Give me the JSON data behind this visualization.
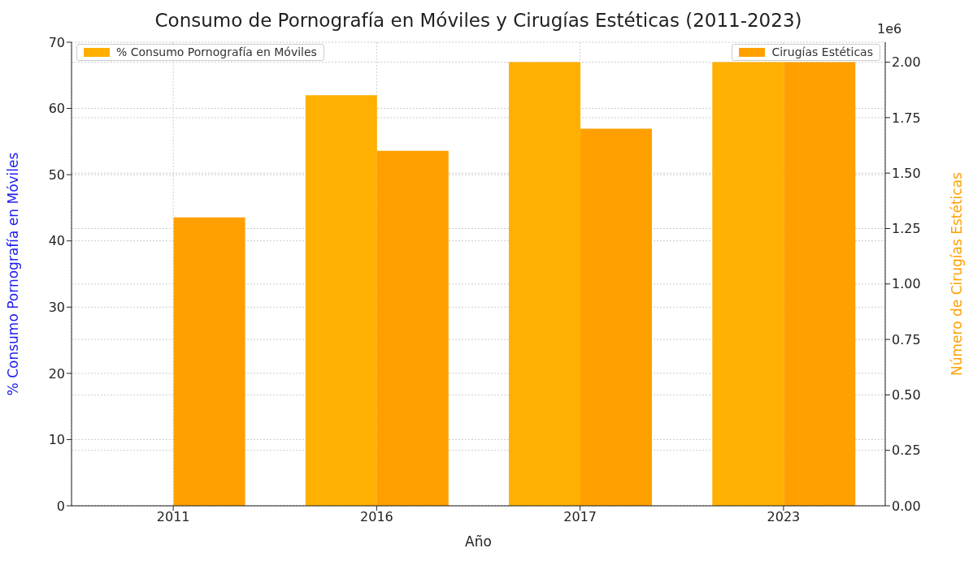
{
  "chart_data": {
    "type": "bar",
    "title": "Consumo de Pornografía en Móviles y Cirugías Estéticas (2011-2023)",
    "xlabel": "Año",
    "ylabel": "% Consumo Pornografía en Móviles",
    "y2label": "Número de Cirugías Estéticas",
    "categories": [
      "2011",
      "2016",
      "2017",
      "2023"
    ],
    "series": [
      {
        "name": "% Consumo Pornografía en Móviles",
        "color": "#ffb000",
        "values": [
          null,
          62,
          67,
          67
        ]
      },
      {
        "name": "Cirugías Estéticas",
        "color": "#ffa000",
        "axis": "y2",
        "values": [
          1.3,
          1.6,
          1.7,
          2.0
        ]
      }
    ],
    "ylim": [
      0,
      70
    ],
    "yticks": [
      0,
      10,
      20,
      30,
      40,
      50,
      60,
      70
    ],
    "y2lim": [
      0,
      2.09
    ],
    "y2ticks": [
      {
        "value": 0,
        "label": "0.00"
      },
      0.25,
      {
        "value": 0.5,
        "label": "0.50"
      },
      0.75,
      {
        "value": 1,
        "label": "1.00"
      },
      1.25,
      {
        "value": 1.5,
        "label": "1.50"
      },
      1.75,
      {
        "value": 2,
        "label": "2.00"
      }
    ],
    "annotations": [
      "1e6"
    ],
    "grid": true,
    "legend": "top"
  }
}
